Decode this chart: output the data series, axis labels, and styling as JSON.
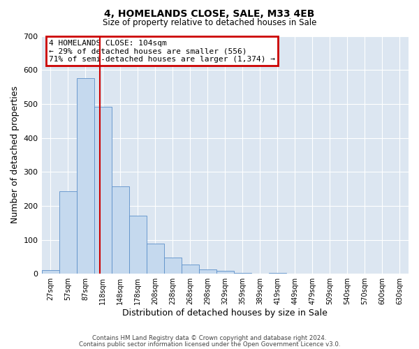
{
  "title": "4, HOMELANDS CLOSE, SALE, M33 4EB",
  "subtitle": "Size of property relative to detached houses in Sale",
  "xlabel": "Distribution of detached houses by size in Sale",
  "ylabel": "Number of detached properties",
  "bin_labels": [
    "27sqm",
    "57sqm",
    "87sqm",
    "118sqm",
    "148sqm",
    "178sqm",
    "208sqm",
    "238sqm",
    "268sqm",
    "298sqm",
    "329sqm",
    "359sqm",
    "389sqm",
    "419sqm",
    "449sqm",
    "479sqm",
    "509sqm",
    "540sqm",
    "570sqm",
    "600sqm",
    "630sqm"
  ],
  "bar_values": [
    10,
    243,
    575,
    492,
    258,
    170,
    88,
    47,
    27,
    13,
    8,
    2,
    0,
    3,
    0,
    0,
    0,
    0,
    0,
    0,
    0
  ],
  "bar_color": "#c5d9ee",
  "bar_edge_color": "#5b8fc9",
  "bg_color": "#dce6f1",
  "vline_x": 2.85,
  "vline_color": "#cc0000",
  "annotation_line1": "4 HOMELANDS CLOSE: 104sqm",
  "annotation_line2": "← 29% of detached houses are smaller (556)",
  "annotation_line3": "71% of semi-detached houses are larger (1,374) →",
  "annotation_box_color": "#cc0000",
  "ylim": [
    0,
    700
  ],
  "yticks": [
    0,
    100,
    200,
    300,
    400,
    500,
    600,
    700
  ],
  "footer_line1": "Contains HM Land Registry data © Crown copyright and database right 2024.",
  "footer_line2": "Contains public sector information licensed under the Open Government Licence v3.0."
}
